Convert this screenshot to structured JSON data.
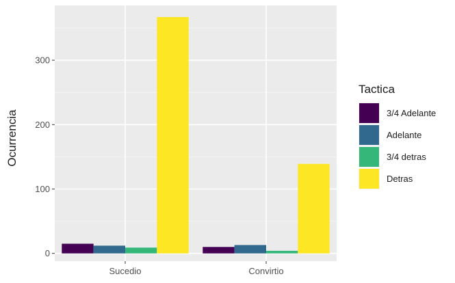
{
  "chart_data": {
    "type": "bar",
    "categories": [
      "Sucedio",
      "Convirtio"
    ],
    "series": [
      {
        "name": "3/4 Adelante",
        "values": [
          15,
          10
        ],
        "color": "#440154"
      },
      {
        "name": "Adelante",
        "values": [
          12,
          13
        ],
        "color": "#31688e"
      },
      {
        "name": "3/4 detras",
        "values": [
          9,
          4
        ],
        "color": "#35b779"
      },
      {
        "name": "Detras",
        "values": [
          367,
          139
        ],
        "color": "#fde725"
      }
    ],
    "ylabel": "Ocurrencia",
    "xlabel": "",
    "ylim": [
      -12,
      385
    ],
    "yticks": [
      0,
      100,
      200,
      300
    ],
    "legend_title": "Tactica",
    "legend_position": "right",
    "grid": true,
    "panel_background": "#ebebeb"
  }
}
